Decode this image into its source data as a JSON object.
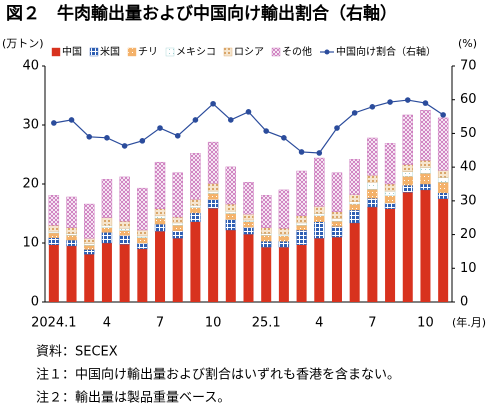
{
  "chart_data": {
    "type": "bar",
    "title": "図２　牛肉輸出量および中国向け輸出割合（右軸）",
    "y_label": "(万トン)",
    "y2_label": "(%)",
    "x_label": "(年.月)",
    "categories": [
      "2024.1",
      null,
      null,
      "4",
      null,
      null,
      "7",
      null,
      null,
      "10",
      null,
      null,
      "25.1",
      null,
      null,
      "4",
      null,
      null,
      "7",
      null,
      null,
      "10",
      null
    ],
    "series": [
      {
        "name": "中国",
        "color": "#d8321e",
        "values": [
          9.7,
          9.5,
          8.1,
          10.0,
          9.8,
          9.0,
          12.0,
          10.8,
          13.6,
          15.9,
          12.2,
          11.5,
          9.3,
          9.3,
          9.7,
          10.8,
          11.0,
          13.4,
          16.1,
          15.8,
          18.6,
          19.0,
          17.5
        ]
      },
      {
        "name": "米国",
        "color": "#2f5fb3",
        "values": [
          1.2,
          1.0,
          0.8,
          1.8,
          1.5,
          1.0,
          1.2,
          1.3,
          1.5,
          1.5,
          1.8,
          1.2,
          1.0,
          1.0,
          2.5,
          2.8,
          1.8,
          2.2,
          1.5,
          1.0,
          1.2,
          1.0,
          1.0
        ]
      },
      {
        "name": "チリ",
        "color": "#f4b26b",
        "values": [
          0.8,
          0.8,
          0.7,
          0.8,
          0.8,
          0.9,
          1.0,
          0.9,
          0.9,
          1.0,
          1.0,
          0.9,
          1.0,
          0.9,
          0.8,
          1.0,
          0.9,
          1.0,
          1.5,
          1.2,
          1.5,
          1.8,
          1.8
        ]
      },
      {
        "name": "メキシコ",
        "color": "#9fcfd0",
        "values": [
          0.3,
          0.3,
          0.3,
          0.4,
          0.4,
          0.3,
          0.4,
          0.4,
          0.4,
          0.4,
          0.4,
          0.3,
          0.3,
          0.3,
          0.4,
          0.4,
          0.4,
          0.4,
          1.2,
          0.8,
          0.8,
          1.0,
          0.8
        ]
      },
      {
        "name": "ロシア",
        "color": "#d9a66a",
        "values": [
          1.0,
          1.0,
          0.9,
          1.3,
          1.2,
          1.0,
          1.2,
          1.0,
          1.0,
          1.3,
          1.2,
          1.0,
          1.0,
          1.0,
          1.2,
          1.2,
          1.2,
          1.2,
          1.2,
          1.2,
          1.2,
          1.2,
          1.2
        ]
      },
      {
        "name": "その他",
        "color": "#c86fb8",
        "values": [
          5.1,
          5.2,
          5.8,
          6.5,
          7.5,
          7.1,
          7.9,
          7.5,
          7.8,
          7.0,
          6.3,
          5.4,
          5.5,
          6.5,
          7.6,
          8.2,
          6.6,
          6.0,
          6.3,
          6.9,
          8.4,
          8.5,
          8.9
        ]
      },
      {
        "name": "中国向け割合（右軸）",
        "color": "#2b4c9c",
        "type": "line",
        "axis": "y2",
        "values": [
          53.1,
          54.0,
          49.0,
          48.7,
          46.3,
          47.8,
          51.6,
          49.3,
          54.0,
          58.8,
          54.0,
          56.4,
          50.7,
          48.7,
          44.5,
          44.2,
          51.6,
          56.1,
          57.9,
          59.3,
          59.9,
          59.0,
          55.5
        ]
      }
    ],
    "stacked": true,
    "ylim": [
      0,
      40
    ],
    "yticks": [
      0,
      10,
      20,
      30,
      40
    ],
    "y2lim": [
      0,
      70
    ],
    "y2ticks": [
      0,
      10,
      20,
      30,
      40,
      50,
      60,
      70
    ],
    "legend": "top",
    "notes": [
      "資料：SECEX",
      "注１：中国向け輸出量および割合はいずれも香港を含まない。",
      "注２：輸出量は製品重量ベース。"
    ]
  }
}
